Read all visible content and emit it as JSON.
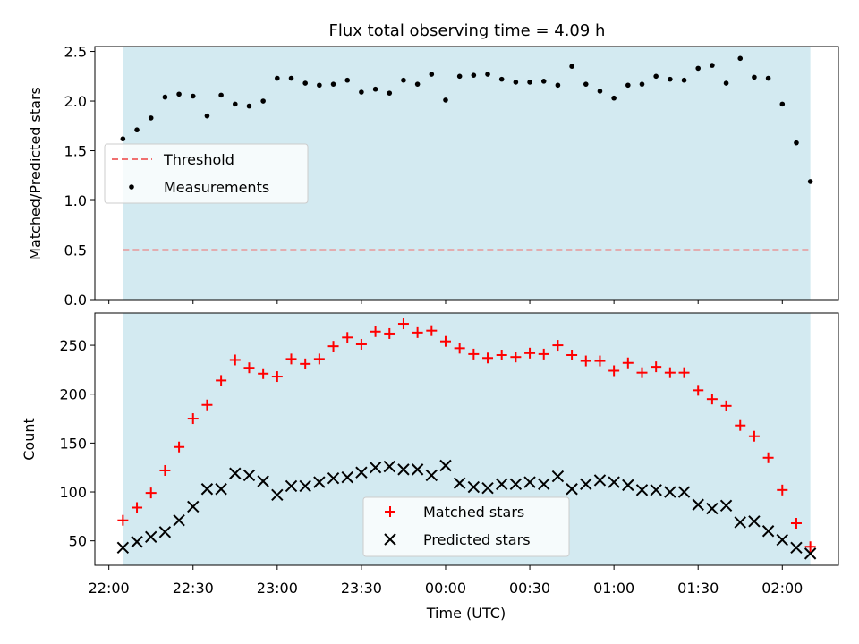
{
  "chart_data": [
    {
      "type": "scatter",
      "title": "Flux total observing time = 4.09 h",
      "ylabel": "Matched/Predicted stars",
      "xlabel": "",
      "ylim": [
        0,
        2.55
      ],
      "yticks": [
        0,
        0.5,
        1.0,
        1.5,
        2.0,
        2.5
      ],
      "ytick_labels": [
        "0.0",
        "0.5",
        "1.0",
        "1.5",
        "2.0",
        "2.5"
      ],
      "xlim": [
        "21:55",
        "02:20"
      ],
      "observing_window": [
        "22:05",
        "02:10"
      ],
      "observing_window_color": "#d3eaf1",
      "grid": false,
      "legend_position": "center-left",
      "series": [
        {
          "name": "Threshold",
          "style": "dashed-line",
          "color": "#f07070",
          "x": [
            "22:05",
            "02:10"
          ],
          "values": [
            0.5,
            0.5
          ]
        },
        {
          "name": "Measurements",
          "style": "dot",
          "color": "#000000",
          "x": [
            "22:05",
            "22:10",
            "22:15",
            "22:20",
            "22:25",
            "22:30",
            "22:35",
            "22:40",
            "22:45",
            "22:50",
            "22:55",
            "23:00",
            "23:05",
            "23:10",
            "23:15",
            "23:20",
            "23:25",
            "23:30",
            "23:35",
            "23:40",
            "23:45",
            "23:50",
            "23:55",
            "00:00",
            "00:05",
            "00:10",
            "00:15",
            "00:20",
            "00:25",
            "00:30",
            "00:35",
            "00:40",
            "00:45",
            "00:50",
            "00:55",
            "01:00",
            "01:05",
            "01:10",
            "01:15",
            "01:20",
            "01:25",
            "01:30",
            "01:35",
            "01:40",
            "01:45",
            "01:50",
            "01:55",
            "02:00",
            "02:05",
            "02:10"
          ],
          "values": [
            1.62,
            1.71,
            1.83,
            2.04,
            2.07,
            2.05,
            1.85,
            2.06,
            1.97,
            1.95,
            2.0,
            2.23,
            2.23,
            2.18,
            2.16,
            2.17,
            2.21,
            2.09,
            2.12,
            2.08,
            2.21,
            2.17,
            2.27,
            2.01,
            2.25,
            2.26,
            2.27,
            2.22,
            2.19,
            2.19,
            2.2,
            2.16,
            2.35,
            2.17,
            2.1,
            2.03,
            2.16,
            2.17,
            2.25,
            2.22,
            2.21,
            2.33,
            2.36,
            2.18,
            2.43,
            2.24,
            2.23,
            1.97,
            1.58,
            1.19
          ]
        }
      ]
    },
    {
      "type": "scatter",
      "title": "",
      "ylabel": "Count",
      "xlabel": "Time (UTC)",
      "ylim": [
        25,
        283
      ],
      "yticks": [
        50,
        100,
        150,
        200,
        250
      ],
      "ytick_labels": [
        "50",
        "100",
        "150",
        "200",
        "250"
      ],
      "xlim": [
        "21:55",
        "02:20"
      ],
      "xticks": [
        "22:00",
        "22:30",
        "23:00",
        "23:30",
        "00:00",
        "00:30",
        "01:00",
        "01:30",
        "02:00"
      ],
      "observing_window": [
        "22:05",
        "02:10"
      ],
      "observing_window_color": "#d3eaf1",
      "grid": false,
      "legend_position": "bottom-center",
      "series": [
        {
          "name": "Matched stars",
          "marker": "+",
          "color": "#ff0000",
          "x": [
            "22:05",
            "22:10",
            "22:15",
            "22:20",
            "22:25",
            "22:30",
            "22:35",
            "22:40",
            "22:45",
            "22:50",
            "22:55",
            "23:00",
            "23:05",
            "23:10",
            "23:15",
            "23:20",
            "23:25",
            "23:30",
            "23:35",
            "23:40",
            "23:45",
            "23:50",
            "23:55",
            "00:00",
            "00:05",
            "00:10",
            "00:15",
            "00:20",
            "00:25",
            "00:30",
            "00:35",
            "00:40",
            "00:45",
            "00:50",
            "00:55",
            "01:00",
            "01:05",
            "01:10",
            "01:15",
            "01:20",
            "01:25",
            "01:30",
            "01:35",
            "01:40",
            "01:45",
            "01:50",
            "01:55",
            "02:00",
            "02:05",
            "02:10"
          ],
          "values": [
            71,
            84,
            99,
            122,
            146,
            175,
            189,
            214,
            235,
            227,
            221,
            218,
            236,
            231,
            236,
            249,
            258,
            251,
            264,
            262,
            272,
            263,
            265,
            254,
            247,
            241,
            237,
            240,
            238,
            242,
            241,
            250,
            240,
            234,
            234,
            224,
            232,
            222,
            228,
            222,
            222,
            204,
            195,
            188,
            168,
            157,
            135,
            102,
            68,
            44
          ]
        },
        {
          "name": "Predicted stars",
          "marker": "x",
          "color": "#000000",
          "x": [
            "22:05",
            "22:10",
            "22:15",
            "22:20",
            "22:25",
            "22:30",
            "22:35",
            "22:40",
            "22:45",
            "22:50",
            "22:55",
            "23:00",
            "23:05",
            "23:10",
            "23:15",
            "23:20",
            "23:25",
            "23:30",
            "23:35",
            "23:40",
            "23:45",
            "23:50",
            "23:55",
            "00:00",
            "00:05",
            "00:10",
            "00:15",
            "00:20",
            "00:25",
            "00:30",
            "00:35",
            "00:40",
            "00:45",
            "00:50",
            "00:55",
            "01:00",
            "01:05",
            "01:10",
            "01:15",
            "01:20",
            "01:25",
            "01:30",
            "01:35",
            "01:40",
            "01:45",
            "01:50",
            "01:55",
            "02:00",
            "02:05",
            "02:10"
          ],
          "values": [
            43,
            49,
            54,
            59,
            71,
            85,
            103,
            103,
            119,
            117,
            111,
            97,
            106,
            106,
            110,
            114,
            115,
            120,
            125,
            126,
            123,
            123,
            117,
            127,
            109,
            105,
            104,
            108,
            108,
            110,
            108,
            116,
            103,
            108,
            112,
            110,
            107,
            102,
            102,
            100,
            100,
            87,
            83,
            86,
            69,
            70,
            60,
            51,
            43,
            37
          ]
        }
      ]
    }
  ]
}
